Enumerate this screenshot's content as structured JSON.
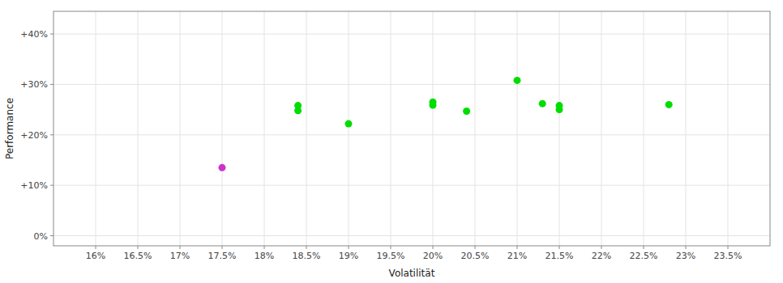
{
  "chart_data": {
    "type": "scatter",
    "x_label": "Volatilität",
    "y_label": "Performance",
    "xlim": [
      0.155,
      0.24
    ],
    "ylim": [
      -0.02,
      0.445
    ],
    "xticks": [
      {
        "value": 0.16,
        "label": "16%"
      },
      {
        "value": 0.165,
        "label": "16.5%"
      },
      {
        "value": 0.17,
        "label": "17%"
      },
      {
        "value": 0.175,
        "label": "17.5%"
      },
      {
        "value": 0.18,
        "label": "18%"
      },
      {
        "value": 0.185,
        "label": "18.5%"
      },
      {
        "value": 0.19,
        "label": "19%"
      },
      {
        "value": 0.195,
        "label": "19.5%"
      },
      {
        "value": 0.2,
        "label": "20%"
      },
      {
        "value": 0.205,
        "label": "20.5%"
      },
      {
        "value": 0.21,
        "label": "21%"
      },
      {
        "value": 0.215,
        "label": "21.5%"
      },
      {
        "value": 0.22,
        "label": "22%"
      },
      {
        "value": 0.225,
        "label": "22.5%"
      },
      {
        "value": 0.23,
        "label": "23%"
      },
      {
        "value": 0.235,
        "label": "23.5%"
      }
    ],
    "yticks": [
      {
        "value": 0.0,
        "label": "0%"
      },
      {
        "value": 0.1,
        "label": "+10%"
      },
      {
        "value": 0.2,
        "label": "+20%"
      },
      {
        "value": 0.3,
        "label": "+30%"
      },
      {
        "value": 0.4,
        "label": "+40%"
      }
    ],
    "grid": true,
    "series": [
      {
        "color": "#00dd00",
        "x": [
          0.184,
          0.184,
          0.19,
          0.2,
          0.2,
          0.204,
          0.21,
          0.213,
          0.215,
          0.215,
          0.228
        ],
        "values": [
          0.258,
          0.248,
          0.222,
          0.265,
          0.259,
          0.247,
          0.308,
          0.262,
          0.258,
          0.25,
          0.26
        ]
      },
      {
        "color": "#cc33cc",
        "x": [
          0.175
        ],
        "values": [
          0.135
        ]
      }
    ]
  }
}
